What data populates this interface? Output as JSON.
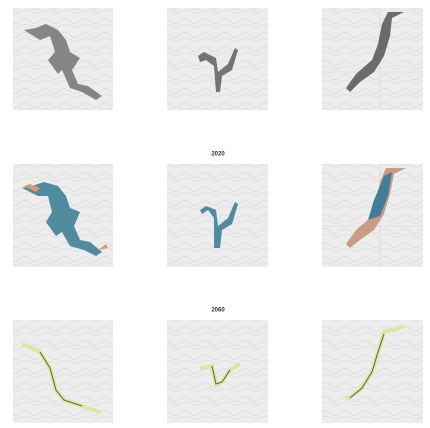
{
  "labels": {
    "row2": "2020",
    "row3": "2060"
  }
}
